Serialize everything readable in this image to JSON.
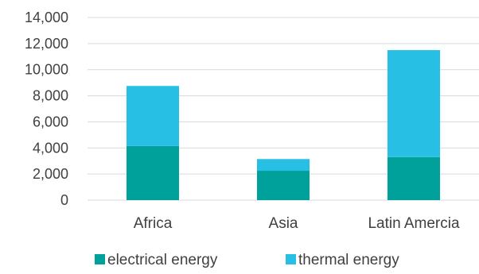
{
  "chart_data": {
    "type": "bar",
    "stacked": true,
    "categories": [
      "Africa",
      "Asia",
      "Latin Amercia"
    ],
    "series": [
      {
        "name": "electrical energy",
        "values": [
          4150,
          2250,
          3300
        ],
        "color": "#00A19A"
      },
      {
        "name": "thermal energy",
        "values": [
          4600,
          900,
          8200
        ],
        "color": "#27BFE3"
      }
    ],
    "yticks": [
      "0",
      "2,000",
      "4,000",
      "6,000",
      "8,000",
      "10,000",
      "12,000",
      "14,000"
    ],
    "ylim": [
      0,
      14000
    ],
    "grid": true,
    "legend_position": "bottom"
  }
}
